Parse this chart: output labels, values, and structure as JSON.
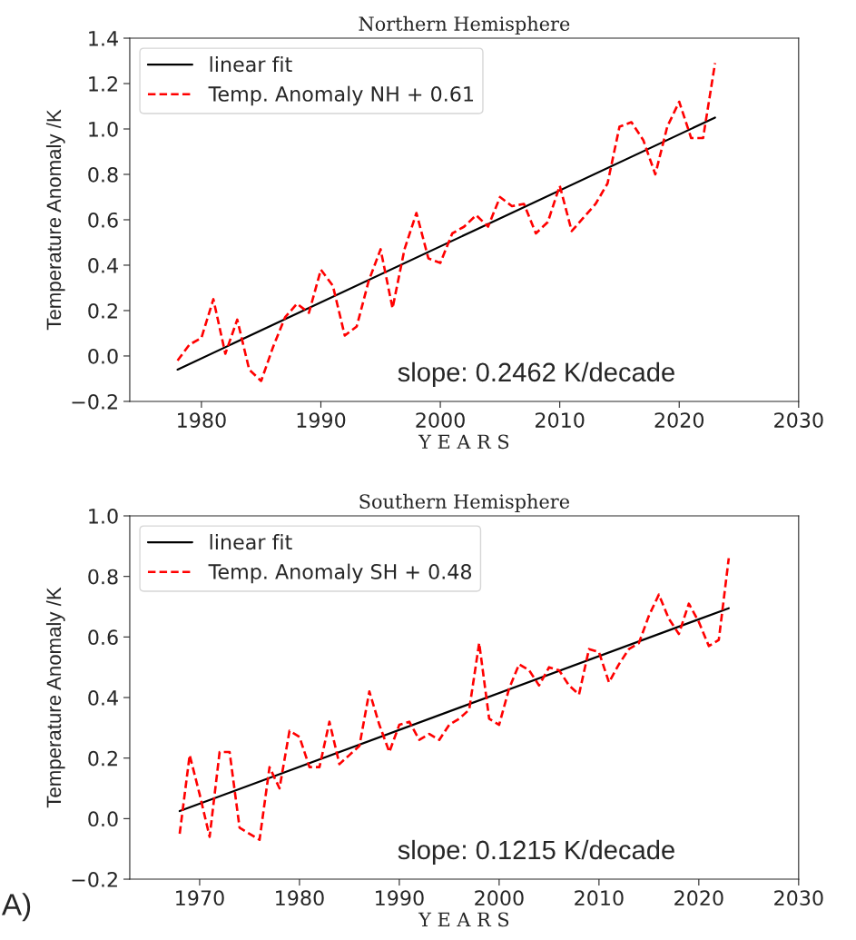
{
  "chart_data": [
    {
      "type": "line",
      "title": "Northern Hemisphere",
      "xlabel": "Y E A R S",
      "ylabel": "Temperature Anomaly /K",
      "series": [
        {
          "name": "linear fit",
          "color": "#000000",
          "line_style": "solid",
          "x": [
            1978,
            2023
          ],
          "values": [
            -0.06,
            1.05
          ]
        },
        {
          "name": "Temp. Anomaly NH + 0.61",
          "color": "#ff0000",
          "line_style": "dashed",
          "x": [
            1978,
            1979,
            1980,
            1981,
            1982,
            1983,
            1984,
            1985,
            1986,
            1987,
            1988,
            1989,
            1990,
            1991,
            1992,
            1993,
            1994,
            1995,
            1996,
            1997,
            1998,
            1999,
            2000,
            2001,
            2002,
            2003,
            2004,
            2005,
            2006,
            2007,
            2008,
            2009,
            2010,
            2011,
            2012,
            2013,
            2014,
            2015,
            2016,
            2017,
            2018,
            2019,
            2020,
            2021,
            2022,
            2023
          ],
          "values": [
            -0.02,
            0.05,
            0.08,
            0.25,
            0.01,
            0.16,
            -0.06,
            -0.11,
            0.04,
            0.17,
            0.23,
            0.19,
            0.38,
            0.31,
            0.09,
            0.13,
            0.33,
            0.47,
            0.21,
            0.47,
            0.63,
            0.43,
            0.41,
            0.54,
            0.57,
            0.62,
            0.57,
            0.7,
            0.66,
            0.67,
            0.54,
            0.59,
            0.75,
            0.55,
            0.61,
            0.67,
            0.76,
            1.01,
            1.03,
            0.95,
            0.8,
            1.01,
            1.12,
            0.96,
            0.96,
            1.29
          ]
        }
      ],
      "xlim": [
        1974,
        2030
      ],
      "xticks": [
        1980,
        1990,
        2000,
        2010,
        2020,
        2030
      ],
      "ylim": [
        -0.2,
        1.4
      ],
      "yticks": [
        {
          "value": -0.2,
          "label": "−0.2"
        },
        {
          "value": 0,
          "label": "0.0"
        },
        {
          "value": 0.2,
          "label": "0.2"
        },
        {
          "value": 0.4,
          "label": "0.4"
        },
        {
          "value": 0.6,
          "label": "0.6"
        },
        {
          "value": 0.8,
          "label": "0.8"
        },
        {
          "value": 1.0,
          "label": "1.0"
        },
        {
          "value": 1.2,
          "label": "1.2"
        },
        {
          "value": 1.4,
          "label": "1.4"
        }
      ],
      "legend": "top left",
      "annotations": [
        "slope: 0.2462 K/decade"
      ]
    },
    {
      "type": "line",
      "title": "Southern Hemisphere",
      "xlabel": "Y E A R S",
      "ylabel": "Temperature Anomaly /K",
      "series": [
        {
          "name": "linear fit",
          "color": "#000000",
          "line_style": "solid",
          "x": [
            1968,
            2023
          ],
          "values": [
            0.025,
            0.695
          ]
        },
        {
          "name": "Temp. Anomaly SH + 0.48",
          "color": "#ff0000",
          "line_style": "dashed",
          "x": [
            1968,
            1969,
            1970,
            1971,
            1972,
            1973,
            1974,
            1975,
            1976,
            1977,
            1978,
            1979,
            1980,
            1981,
            1982,
            1983,
            1984,
            1985,
            1986,
            1987,
            1988,
            1989,
            1990,
            1991,
            1992,
            1993,
            1994,
            1995,
            1996,
            1997,
            1998,
            1999,
            2000,
            2001,
            2002,
            2003,
            2004,
            2005,
            2006,
            2007,
            2008,
            2009,
            2010,
            2011,
            2012,
            2013,
            2014,
            2015,
            2016,
            2017,
            2018,
            2019,
            2020,
            2021,
            2022,
            2023
          ],
          "values": [
            -0.05,
            0.21,
            0.08,
            -0.06,
            0.22,
            0.22,
            -0.03,
            -0.05,
            -0.07,
            0.17,
            0.1,
            0.29,
            0.27,
            0.17,
            0.17,
            0.32,
            0.18,
            0.21,
            0.24,
            0.42,
            0.31,
            0.22,
            0.31,
            0.32,
            0.26,
            0.28,
            0.26,
            0.31,
            0.33,
            0.36,
            0.58,
            0.33,
            0.31,
            0.43,
            0.51,
            0.49,
            0.44,
            0.5,
            0.49,
            0.44,
            0.41,
            0.56,
            0.55,
            0.45,
            0.51,
            0.56,
            0.58,
            0.67,
            0.74,
            0.66,
            0.61,
            0.71,
            0.65,
            0.57,
            0.59,
            0.86
          ]
        }
      ],
      "xlim": [
        1963,
        2030
      ],
      "xticks": [
        1970,
        1980,
        1990,
        2000,
        2010,
        2020,
        2030
      ],
      "ylim": [
        -0.2,
        1.0
      ],
      "yticks": [
        {
          "value": -0.2,
          "label": "−0.2"
        },
        {
          "value": 0,
          "label": "0.0"
        },
        {
          "value": 0.2,
          "label": "0.2"
        },
        {
          "value": 0.4,
          "label": "0.4"
        },
        {
          "value": 0.6,
          "label": "0.6"
        },
        {
          "value": 0.8,
          "label": "0.8"
        },
        {
          "value": 1.0,
          "label": "1.0"
        }
      ],
      "legend": "top left",
      "annotations": [
        "slope: 0.1215 K/decade",
        "A)"
      ]
    }
  ]
}
